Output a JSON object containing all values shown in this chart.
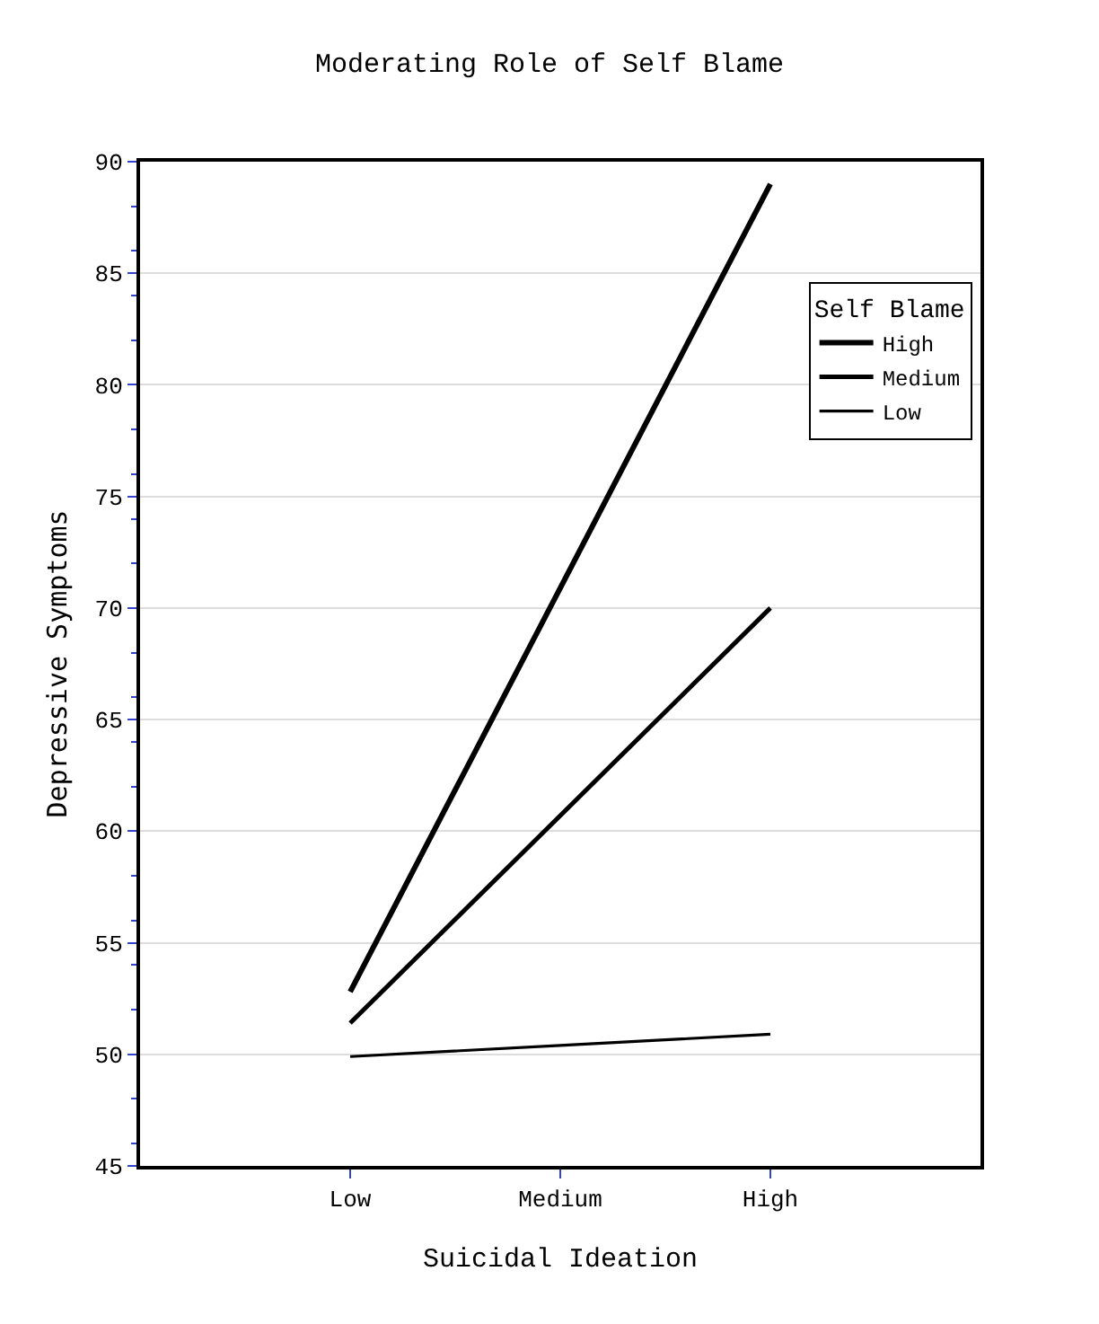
{
  "chart_data": {
    "type": "line",
    "title": "Moderating Role of Self Blame",
    "xlabel": "Suicidal Ideation",
    "ylabel": "Depressive Symptoms",
    "legend_title": "Self Blame",
    "categories": [
      "Low",
      "Medium",
      "High"
    ],
    "series": [
      {
        "name": "High",
        "color": "#000000",
        "values": [
          52.8,
          70.9,
          89
        ]
      },
      {
        "name": "Medium",
        "color": "#000000",
        "values": [
          51.4,
          60.7,
          70
        ]
      },
      {
        "name": "Low",
        "color": "#000000",
        "values": [
          49.9,
          50.4,
          50.9
        ]
      }
    ],
    "ylim": [
      45,
      90
    ],
    "yticks": [
      45,
      50,
      55,
      60,
      65,
      70,
      75,
      80,
      85,
      90
    ],
    "grid": "y",
    "legend": "top right",
    "marker": "none",
    "line_style": "solid"
  }
}
